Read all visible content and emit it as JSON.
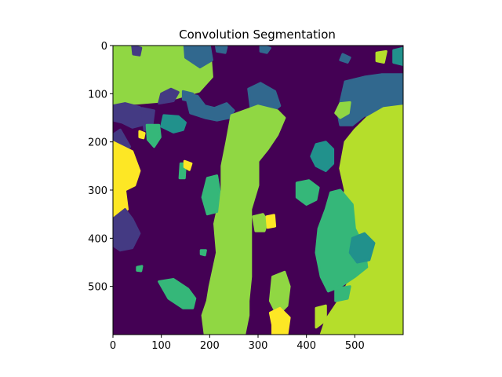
{
  "chart_data": {
    "type": "heatmap",
    "title": "Convolution Segmentation",
    "xlabel": "",
    "ylabel": "",
    "xlim": [
      0,
      600
    ],
    "ylim": [
      600,
      0
    ],
    "x_ticks": [
      0,
      100,
      200,
      300,
      400,
      500
    ],
    "y_ticks": [
      0,
      100,
      200,
      300,
      400,
      500
    ],
    "colormap": "viridis",
    "colors": {
      "background": "#440154",
      "purple_blue": "#443a83",
      "dark_teal": "#31688e",
      "teal": "#21918c",
      "green_teal": "#35b779",
      "lime_green": "#90d743",
      "yellow_green": "#b5de2b",
      "yellow": "#fde725"
    },
    "regions": [
      {
        "color": "lime_green",
        "points": [
          [
            0,
            0
          ],
          [
            200,
            0
          ],
          [
            205,
            65
          ],
          [
            178,
            95
          ],
          [
            110,
            115
          ],
          [
            50,
            120
          ],
          [
            0,
            120
          ]
        ]
      },
      {
        "color": "dark_teal",
        "points": [
          [
            148,
            0
          ],
          [
            200,
            0
          ],
          [
            205,
            30
          ],
          [
            180,
            45
          ],
          [
            150,
            25
          ]
        ]
      },
      {
        "color": "purple_blue",
        "points": [
          [
            40,
            0
          ],
          [
            58,
            5
          ],
          [
            55,
            20
          ],
          [
            42,
            18
          ]
        ]
      },
      {
        "color": "purple_blue",
        "points": [
          [
            120,
            90
          ],
          [
            135,
            97
          ],
          [
            125,
            115
          ],
          [
            95,
            120
          ],
          [
            100,
            100
          ]
        ]
      },
      {
        "color": "dark_teal",
        "points": [
          [
            145,
            95
          ],
          [
            165,
            100
          ],
          [
            160,
            115
          ],
          [
            145,
            112
          ]
        ]
      },
      {
        "color": "dark_teal",
        "points": [
          [
            213,
            0
          ],
          [
            235,
            3
          ],
          [
            232,
            15
          ],
          [
            215,
            12
          ]
        ]
      },
      {
        "color": "dark_teal",
        "points": [
          [
            305,
            0
          ],
          [
            325,
            5
          ],
          [
            318,
            15
          ],
          [
            305,
            12
          ]
        ]
      },
      {
        "color": "dark_teal",
        "points": [
          [
            475,
            18
          ],
          [
            490,
            25
          ],
          [
            485,
            35
          ],
          [
            470,
            30
          ]
        ]
      },
      {
        "color": "yellow_green",
        "points": [
          [
            545,
            15
          ],
          [
            565,
            12
          ],
          [
            560,
            35
          ],
          [
            545,
            32
          ]
        ]
      },
      {
        "color": "purple_blue",
        "points": [
          [
            0,
            125
          ],
          [
            25,
            120
          ],
          [
            55,
            128
          ],
          [
            70,
            140
          ],
          [
            60,
            165
          ],
          [
            40,
            170
          ],
          [
            20,
            160
          ],
          [
            0,
            155
          ]
        ]
      },
      {
        "color": "purple_blue",
        "points": [
          [
            60,
            130
          ],
          [
            85,
            135
          ],
          [
            80,
            175
          ],
          [
            65,
            175
          ]
        ]
      },
      {
        "color": "yellow",
        "points": [
          [
            55,
            178
          ],
          [
            65,
            182
          ],
          [
            63,
            192
          ],
          [
            55,
            190
          ]
        ]
      },
      {
        "color": "dark_teal",
        "points": [
          [
            150,
            100
          ],
          [
            175,
            105
          ],
          [
            190,
            125
          ],
          [
            210,
            130
          ],
          [
            235,
            120
          ],
          [
            250,
            135
          ],
          [
            240,
            150
          ],
          [
            215,
            155
          ],
          [
            190,
            150
          ],
          [
            160,
            140
          ]
        ]
      },
      {
        "color": "teal",
        "points": [
          [
            105,
            145
          ],
          [
            135,
            147
          ],
          [
            150,
            160
          ],
          [
            145,
            175
          ],
          [
            125,
            180
          ],
          [
            100,
            168
          ]
        ]
      },
      {
        "color": "green_teal",
        "points": [
          [
            70,
            165
          ],
          [
            95,
            165
          ],
          [
            98,
            190
          ],
          [
            85,
            210
          ],
          [
            72,
            195
          ]
        ]
      },
      {
        "color": "purple_blue",
        "points": [
          [
            0,
            185
          ],
          [
            15,
            175
          ],
          [
            35,
            210
          ],
          [
            20,
            225
          ],
          [
            0,
            225
          ]
        ]
      },
      {
        "color": "yellow",
        "points": [
          [
            0,
            200
          ],
          [
            40,
            220
          ],
          [
            55,
            260
          ],
          [
            45,
            290
          ],
          [
            25,
            300
          ],
          [
            30,
            340
          ],
          [
            0,
            355
          ]
        ]
      },
      {
        "color": "purple_blue",
        "points": [
          [
            0,
            360
          ],
          [
            25,
            340
          ],
          [
            40,
            360
          ],
          [
            55,
            390
          ],
          [
            40,
            420
          ],
          [
            15,
            425
          ],
          [
            0,
            415
          ]
        ]
      },
      {
        "color": "dark_teal",
        "points": [
          [
            280,
            90
          ],
          [
            305,
            78
          ],
          [
            335,
            95
          ],
          [
            345,
            125
          ],
          [
            320,
            145
          ],
          [
            285,
            130
          ]
        ]
      },
      {
        "color": "dark_teal",
        "points": [
          [
            480,
            75
          ],
          [
            520,
            65
          ],
          [
            555,
            60
          ],
          [
            600,
            60
          ],
          [
            600,
            155
          ],
          [
            570,
            160
          ],
          [
            545,
            150
          ],
          [
            520,
            145
          ],
          [
            495,
            165
          ],
          [
            470,
            165
          ],
          [
            465,
            140
          ]
        ]
      },
      {
        "color": "teal",
        "points": [
          [
            580,
            10
          ],
          [
            600,
            5
          ],
          [
            600,
            40
          ],
          [
            580,
            35
          ]
        ]
      },
      {
        "color": "lime_green",
        "points": [
          [
            470,
            120
          ],
          [
            490,
            118
          ],
          [
            487,
            140
          ],
          [
            470,
            150
          ],
          [
            460,
            140
          ]
        ]
      },
      {
        "color": "lime_green",
        "points": [
          [
            245,
            145
          ],
          [
            300,
            125
          ],
          [
            340,
            135
          ],
          [
            355,
            150
          ],
          [
            340,
            185
          ],
          [
            320,
            215
          ],
          [
            300,
            240
          ],
          [
            300,
            290
          ],
          [
            285,
            340
          ],
          [
            285,
            400
          ],
          [
            285,
            480
          ],
          [
            280,
            530
          ],
          [
            280,
            560
          ],
          [
            272,
            600
          ],
          [
            190,
            600
          ],
          [
            185,
            560
          ],
          [
            195,
            530
          ],
          [
            200,
            500
          ],
          [
            215,
            430
          ],
          [
            210,
            370
          ],
          [
            225,
            300
          ],
          [
            225,
            250
          ],
          [
            235,
            200
          ]
        ]
      },
      {
        "color": "green_teal",
        "points": [
          [
            195,
            275
          ],
          [
            215,
            270
          ],
          [
            220,
            300
          ],
          [
            215,
            345
          ],
          [
            195,
            350
          ],
          [
            185,
            315
          ]
        ]
      },
      {
        "color": "green_teal",
        "points": [
          [
            140,
            245
          ],
          [
            150,
            245
          ],
          [
            148,
            275
          ],
          [
            138,
            275
          ]
        ]
      },
      {
        "color": "yellow",
        "points": [
          [
            148,
            240
          ],
          [
            162,
            245
          ],
          [
            158,
            258
          ],
          [
            148,
            252
          ]
        ]
      },
      {
        "color": "lime_green",
        "points": [
          [
            290,
            355
          ],
          [
            310,
            350
          ],
          [
            320,
            365
          ],
          [
            313,
            385
          ],
          [
            295,
            385
          ]
        ]
      },
      {
        "color": "yellow",
        "points": [
          [
            318,
            355
          ],
          [
            333,
            352
          ],
          [
            335,
            375
          ],
          [
            320,
            378
          ]
        ]
      },
      {
        "color": "green_teal",
        "points": [
          [
            380,
            285
          ],
          [
            405,
            280
          ],
          [
            425,
            295
          ],
          [
            420,
            320
          ],
          [
            400,
            330
          ],
          [
            380,
            315
          ]
        ]
      },
      {
        "color": "teal",
        "points": [
          [
            420,
            205
          ],
          [
            440,
            200
          ],
          [
            455,
            215
          ],
          [
            455,
            245
          ],
          [
            440,
            260
          ],
          [
            420,
            250
          ],
          [
            410,
            230
          ]
        ]
      },
      {
        "color": "yellow",
        "points": [
          [
            478,
            240
          ],
          [
            490,
            242
          ],
          [
            486,
            252
          ],
          [
            476,
            250
          ]
        ]
      },
      {
        "color": "yellow_green",
        "points": [
          [
            480,
            200
          ],
          [
            500,
            175
          ],
          [
            525,
            150
          ],
          [
            560,
            130
          ],
          [
            600,
            125
          ],
          [
            600,
            600
          ],
          [
            430,
            600
          ],
          [
            440,
            570
          ],
          [
            470,
            525
          ],
          [
            490,
            485
          ],
          [
            510,
            440
          ],
          [
            500,
            385
          ],
          [
            475,
            350
          ],
          [
            480,
            300
          ],
          [
            470,
            255
          ]
        ]
      },
      {
        "color": "green_teal",
        "points": [
          [
            450,
            305
          ],
          [
            470,
            300
          ],
          [
            495,
            330
          ],
          [
            500,
            380
          ],
          [
            520,
            420
          ],
          [
            525,
            460
          ],
          [
            500,
            480
          ],
          [
            470,
            500
          ],
          [
            445,
            510
          ],
          [
            430,
            480
          ],
          [
            420,
            430
          ],
          [
            425,
            380
          ],
          [
            440,
            340
          ]
        ]
      },
      {
        "color": "teal",
        "points": [
          [
            495,
            400
          ],
          [
            520,
            390
          ],
          [
            540,
            410
          ],
          [
            530,
            445
          ],
          [
            505,
            450
          ],
          [
            490,
            430
          ]
        ]
      },
      {
        "color": "green_teal",
        "points": [
          [
            460,
            505
          ],
          [
            490,
            500
          ],
          [
            485,
            525
          ],
          [
            460,
            530
          ]
        ]
      },
      {
        "color": "lime_green",
        "points": [
          [
            330,
            480
          ],
          [
            355,
            470
          ],
          [
            365,
            500
          ],
          [
            360,
            540
          ],
          [
            340,
            560
          ],
          [
            325,
            530
          ]
        ]
      },
      {
        "color": "yellow_green",
        "points": [
          [
            420,
            545
          ],
          [
            440,
            540
          ],
          [
            440,
            570
          ],
          [
            420,
            585
          ]
        ]
      },
      {
        "color": "yellow",
        "points": [
          [
            325,
            555
          ],
          [
            345,
            545
          ],
          [
            365,
            565
          ],
          [
            360,
            600
          ],
          [
            330,
            600
          ],
          [
            330,
            580
          ]
        ]
      },
      {
        "color": "green_teal",
        "points": [
          [
            95,
            490
          ],
          [
            125,
            485
          ],
          [
            155,
            505
          ],
          [
            170,
            525
          ],
          [
            165,
            545
          ],
          [
            145,
            545
          ],
          [
            115,
            525
          ]
        ]
      },
      {
        "color": "green_teal",
        "points": [
          [
            50,
            460
          ],
          [
            60,
            458
          ],
          [
            58,
            468
          ],
          [
            50,
            467
          ]
        ]
      },
      {
        "color": "green_teal",
        "points": [
          [
            182,
            425
          ],
          [
            192,
            425
          ],
          [
            190,
            435
          ],
          [
            182,
            433
          ]
        ]
      }
    ]
  }
}
